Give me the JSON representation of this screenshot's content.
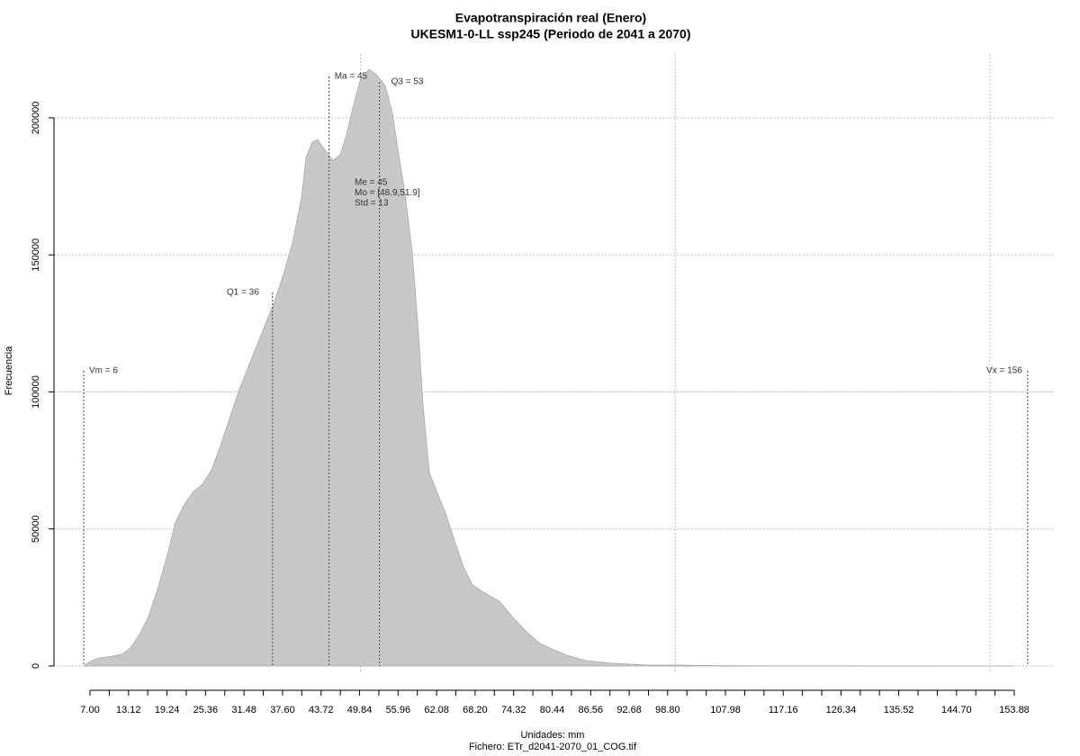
{
  "chart_data": {
    "type": "area",
    "title": "Evapotranspiración real (Enero)",
    "subtitle": "UKESM1-0-LL ssp245 (Periodo de 2041 a 2070)",
    "x_label": "Unidades: mm",
    "file_label": "Fichero: ETr_d2041-2070_01_COG.tif",
    "y_label": "Frecuencia",
    "color": "#c8c8c8",
    "xlim": [
      1.28,
      160.03
    ],
    "ylim": [
      -8870,
      223300
    ],
    "xticks": [
      {
        "value": 7,
        "label": "7.00"
      },
      {
        "value": 13.12,
        "label": "13.12"
      },
      {
        "value": 19.24,
        "label": "19.24"
      },
      {
        "value": 25.36,
        "label": "25.36"
      },
      {
        "value": 31.48,
        "label": "31.48"
      },
      {
        "value": 37.6,
        "label": "37.60"
      },
      {
        "value": 43.72,
        "label": "43.72"
      },
      {
        "value": 49.84,
        "label": "49.84"
      },
      {
        "value": 55.96,
        "label": "55.96"
      },
      {
        "value": 62.08,
        "label": "62.08"
      },
      {
        "value": 68.2,
        "label": "68.20"
      },
      {
        "value": 74.32,
        "label": "74.32"
      },
      {
        "value": 80.44,
        "label": "80.44"
      },
      {
        "value": 86.56,
        "label": "86.56"
      },
      {
        "value": 92.68,
        "label": "92.68"
      },
      {
        "value": 98.8,
        "label": "98.80"
      },
      {
        "value": 107.98,
        "label": "107.98"
      },
      {
        "value": 117.16,
        "label": "117.16"
      },
      {
        "value": 126.34,
        "label": "126.34"
      },
      {
        "value": 135.52,
        "label": "135.52"
      },
      {
        "value": 144.7,
        "label": "144.70"
      },
      {
        "value": 153.88,
        "label": "153.88"
      }
    ],
    "x_minor_ticks": [
      10.06,
      16.18,
      22.3,
      28.42,
      34.54,
      40.66,
      46.78,
      52.9,
      59.02,
      65.14,
      71.26,
      77.38,
      83.5,
      89.62,
      95.74,
      101.86,
      104.92,
      111.04,
      114.1,
      120.22,
      123.28,
      129.4,
      132.46,
      138.58,
      141.64,
      147.76,
      150.82
    ],
    "x_grid": [
      50,
      100,
      150
    ],
    "yticks": [
      0,
      50000,
      100000,
      150000,
      200000
    ],
    "grid": true,
    "x": [
      6.0,
      7.0,
      8.43,
      10.58,
      12.01,
      13.44,
      14.87,
      16.3,
      17.73,
      19.16,
      20.59,
      22.02,
      23.45,
      24.88,
      26.31,
      27.74,
      29.17,
      30.6,
      32.03,
      33.46,
      34.89,
      36.32,
      37.75,
      39.18,
      40.61,
      41.33,
      42.33,
      43.18,
      44.18,
      45.61,
      46.76,
      47.76,
      48.76,
      49.91,
      51.34,
      52.48,
      53.91,
      55.06,
      55.91,
      57.06,
      58.2,
      59.2,
      59.92,
      60.92,
      62.06,
      63.49,
      64.92,
      66.35,
      67.78,
      69.93,
      72.07,
      74.22,
      76.36,
      78.51,
      80.66,
      82.8,
      85.66,
      89.95,
      95.67,
      101.39,
      107.11,
      153.88
    ],
    "values": [
      0,
      1600,
      2900,
      3600,
      4300,
      6600,
      11500,
      18100,
      28000,
      39400,
      52500,
      59100,
      63700,
      66300,
      71600,
      80400,
      90300,
      100100,
      108400,
      116600,
      124800,
      133000,
      142900,
      154400,
      170800,
      185600,
      191100,
      192100,
      188800,
      184500,
      186500,
      193800,
      203600,
      213500,
      217700,
      215800,
      211800,
      201900,
      188800,
      172400,
      151100,
      121500,
      95200,
      70600,
      64000,
      55800,
      45900,
      36100,
      29600,
      26300,
      23600,
      17700,
      12500,
      8200,
      5900,
      3900,
      2000,
      1000,
      300,
      300,
      100,
      0
    ],
    "annotations": [
      {
        "text": "Vm = 6",
        "x": 6
      },
      {
        "text": "Q1 = 36",
        "x": 36
      },
      {
        "text": "Ma = 45",
        "x": 45
      },
      {
        "text": "Q3 = 53",
        "x": 53
      },
      {
        "text": "Vx = 156",
        "x": 156
      }
    ],
    "stats_text": [
      "Me = 45",
      "Mo = [48.9,51.9]",
      "Std = 13"
    ]
  }
}
